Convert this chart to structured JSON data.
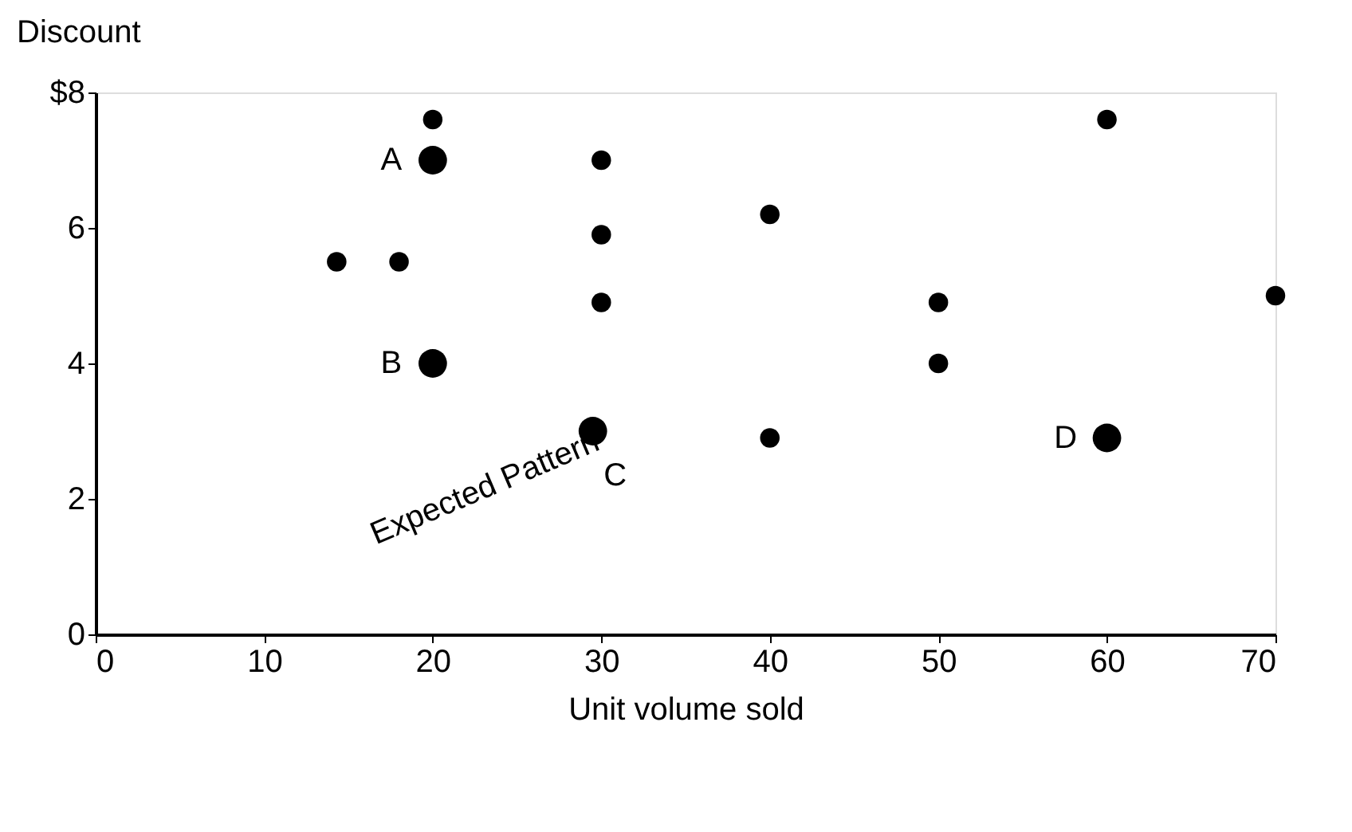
{
  "chart_data": {
    "type": "scatter",
    "xlabel": "Unit volume sold",
    "ylabel": "Discount",
    "series": [
      {
        "color": "#000000",
        "x": [
          20,
          30,
          60,
          14.3,
          18,
          30,
          40,
          30,
          50,
          70,
          50,
          40
        ],
        "values": [
          7.6,
          7.0,
          7.6,
          5.5,
          5.5,
          5.9,
          6.2,
          4.9,
          4.9,
          5.0,
          4.0,
          2.9
        ]
      },
      {
        "color": "#000000",
        "x": [
          20,
          20,
          29.5,
          60
        ],
        "values": [
          7.0,
          4.0,
          3.0,
          2.9
        ]
      }
    ],
    "annotations": [
      {
        "text": "A",
        "x": 20,
        "y": 7.0
      },
      {
        "text": "B",
        "x": 20,
        "y": 4.0
      },
      {
        "text": "C",
        "x": 29.5,
        "y": 3.0
      },
      {
        "text": "D",
        "x": 60,
        "y": 2.9
      },
      "Expected Pattern"
    ],
    "marker": "circle",
    "xlim": [
      0,
      70
    ],
    "xticks": [
      0,
      10,
      20,
      30,
      40,
      50,
      60,
      70
    ],
    "ylim": [
      0,
      8
    ],
    "yticks": [
      0,
      2,
      4,
      6,
      {
        "value": 8,
        "label": "$8"
      }
    ],
    "grid": false
  }
}
